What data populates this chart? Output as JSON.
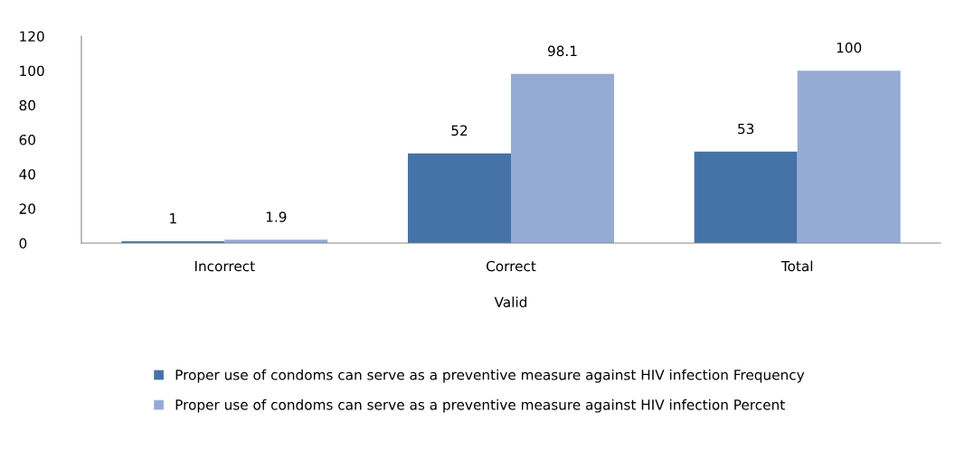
{
  "chart_data": {
    "type": "bar",
    "xlabel": "Valid",
    "categories": [
      "Incorrect",
      "Correct",
      "Total"
    ],
    "series": [
      {
        "name": "Proper use of condoms can serve as a preventive measure against HIV infection Frequency",
        "color": "#4573a7",
        "values": [
          1,
          52,
          53
        ]
      },
      {
        "name": "Proper use of condoms can serve as a preventive measure against HIV infection Percent",
        "color": "#95abd4",
        "values": [
          1.9,
          98.1,
          100
        ]
      }
    ],
    "ylim": [
      0,
      120
    ],
    "yticks": [
      0,
      20,
      40,
      60,
      80,
      100,
      120
    ],
    "data_labels": true,
    "grid": false,
    "legend": "bottom"
  }
}
